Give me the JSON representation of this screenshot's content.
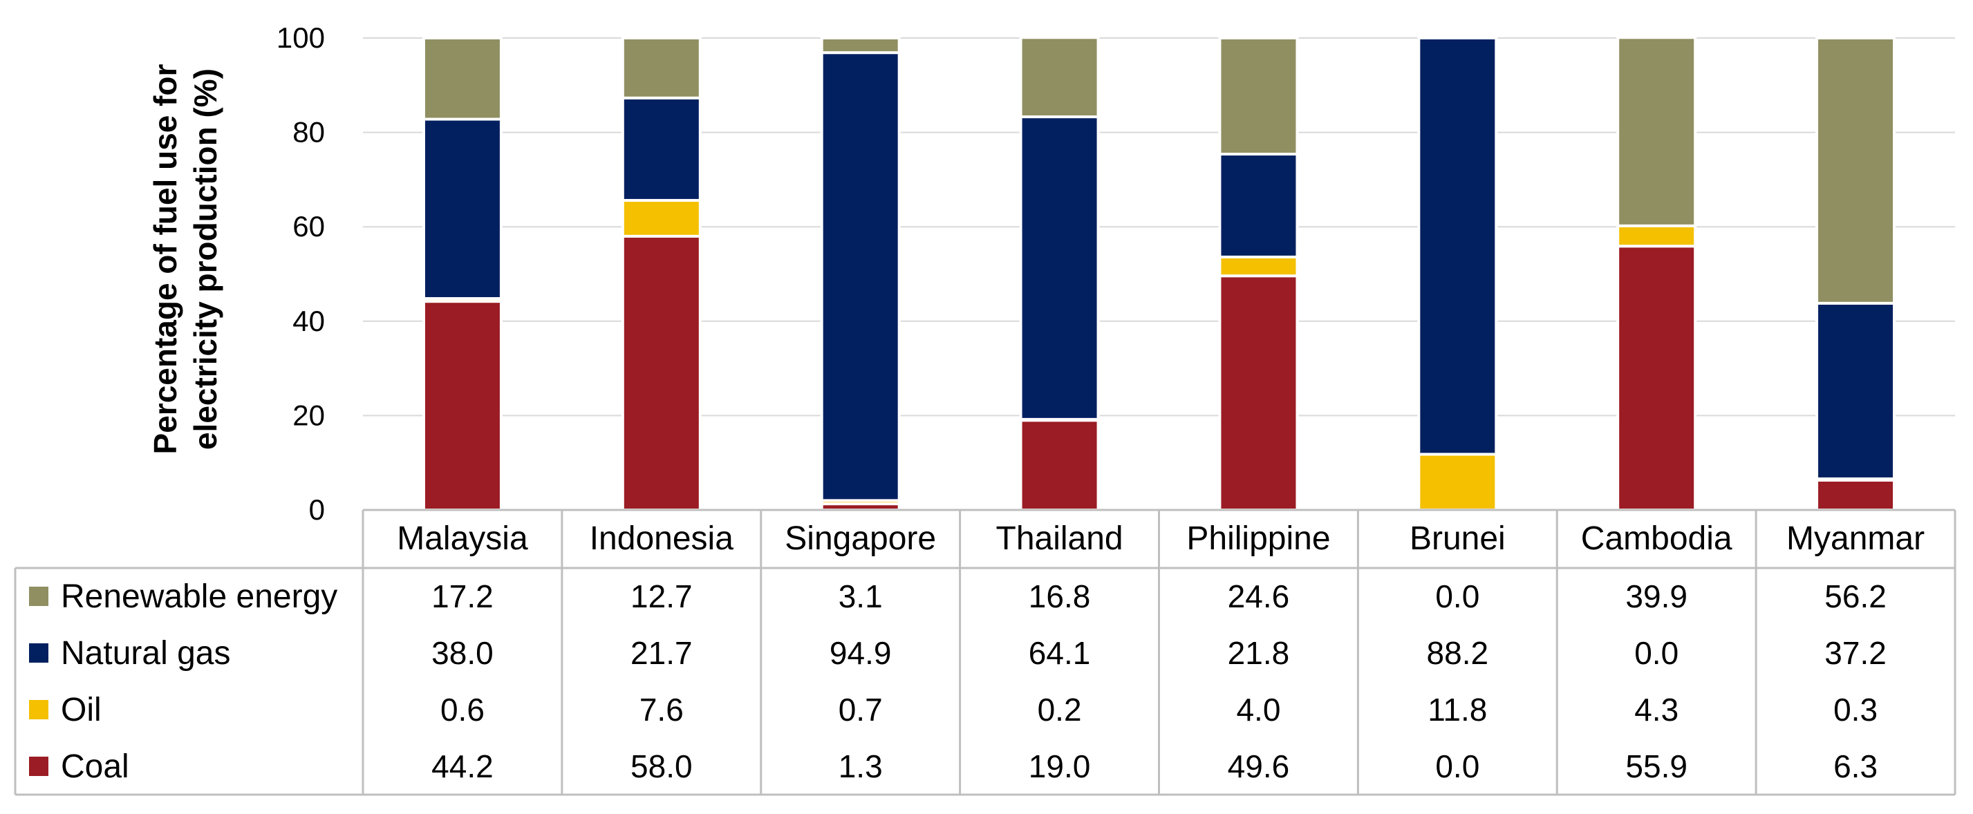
{
  "chart_data": {
    "type": "bar",
    "stacked": true,
    "ylabel_lines": [
      "Percentage of fuel use for",
      "electricity production (%)"
    ],
    "ylim": [
      0,
      100
    ],
    "yticks": [
      0,
      20,
      40,
      60,
      80,
      100
    ],
    "grid": true,
    "categories": [
      "Malaysia",
      "Indonesia",
      "Singapore",
      "Thailand",
      "Philippine",
      "Brunei",
      "Cambodia",
      "Myanmar"
    ],
    "series": [
      {
        "name": "Coal",
        "color": "#9b1c24",
        "values": [
          44.2,
          58.0,
          1.3,
          19.0,
          49.6,
          0.0,
          55.9,
          6.3
        ],
        "labels": [
          "44.2",
          "58.0",
          "1.3",
          "19.0",
          "49.6",
          "0.0",
          "55.9",
          "6.3"
        ]
      },
      {
        "name": "Oil",
        "color": "#f4c000",
        "values": [
          0.6,
          7.6,
          0.7,
          0.2,
          4.0,
          11.8,
          4.3,
          0.3
        ],
        "labels": [
          "0.6",
          "7.6",
          "0.7",
          "0.2",
          "4.0",
          "11.8",
          "4.3",
          "0.3"
        ]
      },
      {
        "name": "Natural gas",
        "color": "#022060",
        "values": [
          38.0,
          21.7,
          94.9,
          64.1,
          21.8,
          88.2,
          0.0,
          37.2
        ],
        "labels": [
          "38.0",
          "21.7",
          "94.9",
          "64.1",
          "21.8",
          "88.2",
          "0.0",
          "37.2"
        ]
      },
      {
        "name": "Renewable energy",
        "color": "#8f8f62",
        "values": [
          17.2,
          12.7,
          3.1,
          16.8,
          24.6,
          0.0,
          39.9,
          56.2
        ],
        "labels": [
          "17.2",
          "12.7",
          "3.1",
          "16.8",
          "24.6",
          "0.0",
          "39.9",
          "56.2"
        ]
      }
    ],
    "table_row_order": [
      "Renewable energy",
      "Natural gas",
      "Oil",
      "Coal"
    ]
  }
}
